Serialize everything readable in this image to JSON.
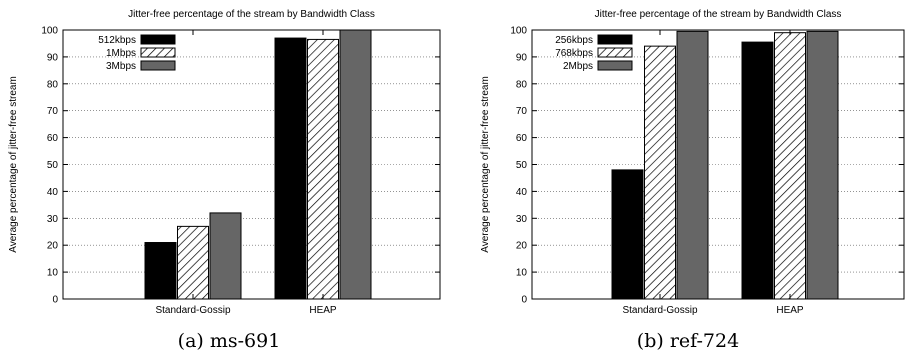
{
  "chart_data": [
    {
      "type": "bar",
      "title": "Jitter-free percentage of the stream by Bandwidth Class",
      "xlabel": "",
      "ylabel": "Average percentage of jitter-free stream",
      "categories": [
        "Standard-Gossip",
        "HEAP"
      ],
      "ylim": [
        0,
        100
      ],
      "yticks": [
        0,
        10,
        20,
        30,
        40,
        50,
        60,
        70,
        80,
        90,
        100
      ],
      "grid": true,
      "legend_position": "top-left",
      "series": [
        {
          "name": "512kbps",
          "values": [
            21,
            97
          ],
          "color": "#000000",
          "pattern": "solid"
        },
        {
          "name": "1Mbps",
          "values": [
            27,
            96.5
          ],
          "color": "#ffffff",
          "pattern": "hatch"
        },
        {
          "name": "3Mbps",
          "values": [
            32,
            100
          ],
          "color": "#666666",
          "pattern": "solid"
        }
      ],
      "caption": "(a) ms-691"
    },
    {
      "type": "bar",
      "title": "Jitter-free percentage of the stream by Bandwidth Class",
      "xlabel": "",
      "ylabel": "Average percentage of jitter-free stream",
      "categories": [
        "Standard-Gossip",
        "HEAP"
      ],
      "ylim": [
        0,
        100
      ],
      "yticks": [
        0,
        10,
        20,
        30,
        40,
        50,
        60,
        70,
        80,
        90,
        100
      ],
      "grid": true,
      "legend_position": "top-left",
      "series": [
        {
          "name": "256kbps",
          "values": [
            48,
            95.5
          ],
          "color": "#000000",
          "pattern": "solid"
        },
        {
          "name": "768kbps",
          "values": [
            94,
            99
          ],
          "color": "#ffffff",
          "pattern": "hatch"
        },
        {
          "name": "2Mbps",
          "values": [
            99.5,
            99.5
          ],
          "color": "#666666",
          "pattern": "solid"
        }
      ],
      "caption": "(b) ref-724"
    }
  ]
}
